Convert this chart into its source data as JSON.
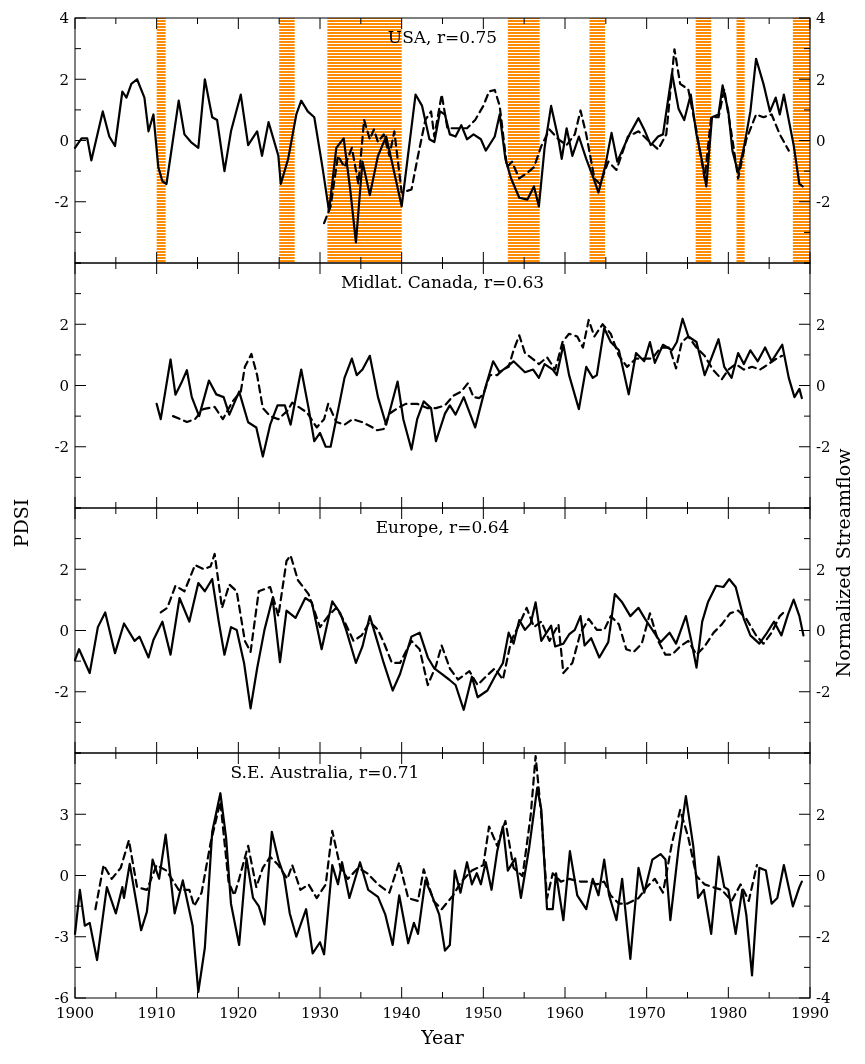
{
  "chart_data": [
    {
      "type": "line",
      "title": "USA, r=0.75",
      "xlim": [
        1900,
        1990
      ],
      "xticks": [
        1900,
        {
          "value": 1905,
          "label": null
        },
        1910,
        {
          "value": 1915,
          "label": null
        },
        1920,
        {
          "value": 1925,
          "label": null
        },
        1930,
        {
          "value": 1935,
          "label": null
        },
        1940,
        {
          "value": 1945,
          "label": null
        },
        1950,
        {
          "value": 1955,
          "label": null
        },
        1960,
        {
          "value": 1965,
          "label": null
        },
        1970,
        {
          "value": 1975,
          "label": null
        },
        1980,
        {
          "value": 1985,
          "label": null
        },
        1990
      ],
      "ylim": [
        -4,
        4
      ],
      "yticks": [
        {
          "value": -4,
          "label": null
        },
        {
          "value": -3,
          "label": null
        },
        -2,
        {
          "value": -1,
          "label": null
        },
        0,
        {
          "value": 1,
          "label": null
        },
        2,
        {
          "value": 3,
          "label": null
        },
        4
      ],
      "y2lim": [
        -4,
        4
      ],
      "y2ticks": [
        {
          "value": -4,
          "label": null
        },
        {
          "value": -3,
          "label": null
        },
        -2,
        {
          "value": -1,
          "label": null
        },
        0,
        {
          "value": 1,
          "label": null
        },
        2,
        {
          "value": 3,
          "label": null
        },
        4
      ],
      "tick_labels": "y",
      "bands": [
        {
          "axis": "x",
          "from": 1910,
          "to": 1911.1,
          "color": "#ff8c00"
        },
        {
          "axis": "x",
          "from": 1925,
          "to": 1926.9,
          "color": "#ff8c00"
        },
        {
          "axis": "x",
          "from": 1930.9,
          "to": 1940,
          "color": "#ff8c00"
        },
        {
          "axis": "x",
          "from": 1953,
          "to": 1956.9,
          "color": "#ff8c00"
        },
        {
          "axis": "x",
          "from": 1963,
          "to": 1964.9,
          "color": "#ff8c00"
        },
        {
          "axis": "x",
          "from": 1976,
          "to": 1977.9,
          "color": "#ff8c00"
        },
        {
          "axis": "x",
          "from": 1981,
          "to": 1982,
          "color": "#ff8c00"
        },
        {
          "axis": "x",
          "from": 1987.9,
          "to": 1990,
          "color": "#ff8c00"
        }
      ],
      "series": [
        {
          "color": "#000000",
          "line_style": "solid",
          "x": [
            1900,
            1900.8,
            1901.5,
            1902,
            1903.4,
            1904.2,
            1904.9,
            1905.8,
            1906.3,
            1906.9,
            1907.6,
            1908.5,
            1909,
            1909.6,
            1910.2,
            1910.7,
            1911.2,
            1912.7,
            1913.4,
            1914.2,
            1915.1,
            1915.9,
            1916.8,
            1917.4,
            1918.3,
            1919.1,
            1920.3,
            1921.2,
            1922.3,
            1922.9,
            1923.7,
            1924.9,
            1925.2,
            1926.1,
            1927.1,
            1927.7,
            1928.5,
            1929.3,
            1930.3,
            1931.1,
            1932,
            1932.9,
            1933.7,
            1934.4,
            1935.2,
            1936.1,
            1937.1,
            1938.1,
            1938.8,
            1940,
            1941.7,
            1942.5,
            1943.4,
            1944,
            1944.7,
            1945.3,
            1945.9,
            1946.6,
            1947.3,
            1948,
            1948.8,
            1949.7,
            1950.3,
            1951.4,
            1952,
            1952.7,
            1953.4,
            1954.4,
            1955.4,
            1956.2,
            1956.8,
            1957.5,
            1958.3,
            1959.2,
            1959.6,
            1960.2,
            1960.9,
            1961.7,
            1962.6,
            1963.5,
            1964.1,
            1964.9,
            1965.7,
            1966.4,
            1967.3,
            1967.9,
            1969,
            1969.8,
            1970.5,
            1971.4,
            1972,
            1973.1,
            1973.9,
            1974.6,
            1975.4,
            1976.1,
            1976.8,
            1977.3,
            1978,
            1978.8,
            1979.3,
            1980,
            1980.5,
            1981.2,
            1981.9,
            1982.7,
            1983.4,
            1984.3,
            1985.1,
            1985.8,
            1986.3,
            1986.8,
            1987.4,
            1988,
            1988.7,
            1989.1
          ],
          "values": [
            -0.24,
            0.07,
            0.07,
            -0.65,
            0.95,
            0.13,
            -0.18,
            1.6,
            1.4,
            1.85,
            2.0,
            1.4,
            0.3,
            0.85,
            -0.87,
            -1.33,
            -1.42,
            1.3,
            0.2,
            -0.05,
            -0.24,
            2.0,
            0.76,
            0.67,
            -1.0,
            0.3,
            1.5,
            -0.15,
            0.3,
            -0.5,
            0.6,
            -0.5,
            -1.42,
            -0.6,
            0.85,
            1.3,
            0.95,
            0.76,
            -0.87,
            -2.3,
            -0.24,
            0.07,
            -1.6,
            -3.33,
            -0.69,
            -1.78,
            -0.5,
            0.13,
            -0.69,
            -2.15,
            1.5,
            1.13,
            0.04,
            -0.05,
            0.95,
            0.85,
            0.2,
            0.13,
            0.5,
            0.04,
            0.2,
            0.04,
            -0.33,
            0.13,
            0.85,
            -0.6,
            -1.24,
            -1.87,
            -1.93,
            -1.5,
            -2.15,
            -0.24,
            1.13,
            0.04,
            -0.6,
            0.4,
            -0.5,
            0.13,
            -0.6,
            -1.24,
            -1.7,
            -0.87,
            0.25,
            -0.69,
            -0.15,
            0.2,
            0.73,
            0.3,
            -0.15,
            0.13,
            0.2,
            2.2,
            1.04,
            0.67,
            1.5,
            0.2,
            -0.69,
            -1.5,
            0.76,
            0.85,
            1.8,
            0.95,
            -0.33,
            -1.05,
            -0.24,
            0.95,
            2.67,
            1.85,
            0.95,
            1.4,
            0.85,
            1.5,
            0.67,
            -0.15,
            -1.42,
            -1.5
          ]
        },
        {
          "color": "#000000",
          "line_style": "dashed",
          "axis": "y2",
          "x": [
            1930.5,
            1931.3,
            1932.2,
            1933,
            1933.9,
            1934.7,
            1935.4,
            1936.1,
            1936.6,
            1937.1,
            1937.8,
            1938.5,
            1939.1,
            1940,
            1941.2,
            1942,
            1942.9,
            1943.6,
            1944,
            1944.9,
            1945.6,
            1946.6,
            1948,
            1949,
            1950,
            1950.7,
            1951.4,
            1952,
            1952.9,
            1953.5,
            1954.4,
            1955.4,
            1956.2,
            1957.1,
            1958.1,
            1959.2,
            1960.2,
            1961.2,
            1961.9,
            1962.6,
            1963.6,
            1964.3,
            1965.3,
            1966.3,
            1967.7,
            1969,
            1970.4,
            1971.4,
            1972.4,
            1973.4,
            1974.1,
            1975.1,
            1976.1,
            1977.1,
            1977.9,
            1978.8,
            1979.5,
            1980.5,
            1981.2,
            1982.2,
            1983.4,
            1984.3,
            1985.3,
            1986.3,
            1987.4
          ],
          "values": [
            -2.7,
            -2.15,
            -0.5,
            -0.87,
            -0.24,
            -1.42,
            0.67,
            0.04,
            0.36,
            -0.05,
            0.2,
            -0.5,
            0.3,
            -1.7,
            -1.6,
            -0.5,
            0.67,
            0.95,
            0.13,
            1.5,
            0.4,
            0.4,
            0.4,
            0.67,
            1.13,
            1.6,
            1.65,
            1.13,
            -0.87,
            -0.69,
            -1.24,
            -1.05,
            -0.87,
            -0.18,
            0.36,
            0.04,
            -0.15,
            0.2,
            0.98,
            0.2,
            -1.24,
            -1.42,
            -0.69,
            -0.96,
            0.13,
            0.3,
            -0.05,
            -0.29,
            0.2,
            2.98,
            1.85,
            1.67,
            0.3,
            -1.24,
            0.76,
            0.76,
            1.67,
            0.04,
            -1.24,
            0.04,
            0.85,
            0.76,
            0.85,
            0.2,
            -0.33
          ]
        }
      ]
    },
    {
      "type": "line",
      "title": "Midlat. Canada, r=0.63",
      "xlim": [
        1900,
        1990
      ],
      "xticks": [
        1900,
        {
          "value": 1905,
          "label": null
        },
        1910,
        {
          "value": 1915,
          "label": null
        },
        1920,
        {
          "value": 1925,
          "label": null
        },
        1930,
        {
          "value": 1935,
          "label": null
        },
        1940,
        {
          "value": 1945,
          "label": null
        },
        1950,
        {
          "value": 1955,
          "label": null
        },
        1960,
        {
          "value": 1965,
          "label": null
        },
        1970,
        {
          "value": 1975,
          "label": null
        },
        1980,
        {
          "value": 1985,
          "label": null
        },
        1990
      ],
      "ylim": [
        -4,
        4
      ],
      "yticks": [
        {
          "value": -4,
          "label": null
        },
        {
          "value": -3,
          "label": null
        },
        -2,
        {
          "value": -1,
          "label": null
        },
        0,
        {
          "value": 1,
          "label": null
        },
        2,
        {
          "value": 3,
          "label": null
        },
        {
          "value": 4,
          "label": null
        }
      ],
      "y2lim": [
        -4,
        4
      ],
      "y2ticks": [
        {
          "value": -4,
          "label": null
        },
        {
          "value": -3,
          "label": null
        },
        -2,
        {
          "value": -1,
          "label": null
        },
        0,
        {
          "value": 1,
          "label": null
        },
        2,
        {
          "value": 3,
          "label": null
        },
        {
          "value": 4,
          "label": null
        }
      ],
      "tick_labels": "y",
      "series": [
        {
          "color": "#000000",
          "line_style": "solid",
          "x": [
            1910,
            1910.5,
            1911.7,
            1912.3,
            1913,
            1913.7,
            1914.3,
            1915.2,
            1916.4,
            1917.3,
            1918.2,
            1918.9,
            1920.1,
            1921.2,
            1922.2,
            1923,
            1923.9,
            1924.8,
            1925.7,
            1926.4,
            1927.7,
            1928.6,
            1929.3,
            1930,
            1930.7,
            1931.3,
            1932.4,
            1933,
            1933.9,
            1934.5,
            1935.2,
            1936.1,
            1937.1,
            1938.1,
            1939.5,
            1940.2,
            1941.2,
            1941.9,
            1942.7,
            1943.6,
            1944.2,
            1945.3,
            1945.9,
            1946.6,
            1947.6,
            1949,
            1950.3,
            1951.2,
            1952,
            1952.9,
            1953.7,
            1954.4,
            1955.1,
            1956.1,
            1956.8,
            1957.5,
            1958.5,
            1959,
            1959.8,
            1960.5,
            1961.7,
            1962.6,
            1963.4,
            1963.9,
            1964.8,
            1965.6,
            1966.6,
            1967.8,
            1968.7,
            1969.7,
            1970.4,
            1971,
            1972,
            1973.1,
            1973.7,
            1974.4,
            1975.1,
            1976.1,
            1977.1,
            1977.9,
            1978.8,
            1979.5,
            1980.4,
            1981.2,
            1981.9,
            1982.7,
            1983.6,
            1984.5,
            1985.3,
            1986.6,
            1987.4,
            1988.1,
            1988.7,
            1989
          ],
          "values": [
            -0.6,
            -1.1,
            0.85,
            -0.3,
            0.07,
            0.5,
            -0.38,
            -1.0,
            0.16,
            -0.29,
            -0.38,
            -0.95,
            -0.2,
            -1.2,
            -1.37,
            -2.32,
            -1.28,
            -0.65,
            -0.65,
            -1.28,
            0.52,
            -0.74,
            -1.82,
            -1.55,
            -2.0,
            -2.0,
            -0.56,
            0.25,
            0.88,
            0.34,
            0.52,
            0.97,
            -0.38,
            -1.28,
            0.13,
            -1.1,
            -2.09,
            -1.1,
            -0.52,
            -0.74,
            -1.82,
            -0.92,
            -0.65,
            -0.95,
            -0.38,
            -1.37,
            -0.02,
            0.79,
            0.43,
            0.61,
            0.79,
            0.61,
            0.43,
            0.52,
            0.25,
            0.7,
            0.52,
            0.34,
            1.33,
            0.34,
            -0.77,
            0.61,
            0.25,
            0.34,
            1.87,
            1.42,
            1.15,
            -0.29,
            1.06,
            0.79,
            1.42,
            0.74,
            1.33,
            1.15,
            1.42,
            2.18,
            1.6,
            1.42,
            0.34,
            0.88,
            1.51,
            0.61,
            0.25,
            1.06,
            0.7,
            1.15,
            0.79,
            1.24,
            0.79,
            1.33,
            0.25,
            -0.38,
            -0.11,
            -0.41
          ]
        },
        {
          "color": "#000000",
          "line_style": "dashed",
          "axis": "y2",
          "x": [
            1912,
            1913.7,
            1914.7,
            1915.7,
            1917.1,
            1918.1,
            1919.3,
            1920.3,
            1920.8,
            1921.6,
            1922.3,
            1923,
            1923.9,
            1924.9,
            1926,
            1926.6,
            1927.6,
            1928.4,
            1929.6,
            1930.5,
            1931,
            1932,
            1933,
            1934,
            1935.1,
            1936.1,
            1937,
            1937.8,
            1938.5,
            1939.5,
            1940.5,
            1941.9,
            1943.2,
            1944.2,
            1945.3,
            1946.3,
            1947.3,
            1948.1,
            1948.8,
            1949.5,
            1950,
            1950.8,
            1951.7,
            1952.4,
            1953.1,
            1953.7,
            1954.4,
            1955.1,
            1956,
            1956.8,
            1957.8,
            1958.8,
            1959.7,
            1960.5,
            1961.5,
            1962.2,
            1962.9,
            1963.6,
            1964.6,
            1965.6,
            1966.6,
            1967.6,
            1968.7,
            1969.7,
            1970.7,
            1971.7,
            1972.8,
            1973.6,
            1974.3,
            1975.1,
            1976.1,
            1977.1,
            1978.1,
            1979.2,
            1980,
            1980.9,
            1981.9,
            1982.9,
            1983.9,
            1984.9,
            1985.9,
            1986.6
          ],
          "values": [
            -1.0,
            -1.19,
            -1.1,
            -0.77,
            -0.7,
            -1.1,
            -0.52,
            -0.2,
            0.61,
            1.03,
            0.34,
            -0.74,
            -1.0,
            -1.1,
            -0.83,
            -0.56,
            -0.74,
            -0.88,
            -1.37,
            -1.1,
            -0.6,
            -1.19,
            -1.28,
            -1.1,
            -1.19,
            -1.32,
            -1.46,
            -1.42,
            -0.92,
            -0.74,
            -0.6,
            -0.6,
            -0.74,
            -0.74,
            -0.65,
            -0.34,
            -0.2,
            0.07,
            -0.38,
            -0.41,
            -0.29,
            0.34,
            0.34,
            0.52,
            0.61,
            1.15,
            1.64,
            1.06,
            0.88,
            0.7,
            0.92,
            0.52,
            1.42,
            1.69,
            1.6,
            1.24,
            2.14,
            1.6,
            2.0,
            1.69,
            0.97,
            0.61,
            0.88,
            0.88,
            0.88,
            1.24,
            1.24,
            0.56,
            1.42,
            1.6,
            1.24,
            0.97,
            0.52,
            0.2,
            0.52,
            0.7,
            0.52,
            0.61,
            0.52,
            0.7,
            0.88,
            0.97
          ]
        }
      ]
    },
    {
      "type": "line",
      "title": "Europe, r=0.64",
      "ylabel": "PDSI",
      "y2label": "Normalized Streamflow",
      "xlim": [
        1900,
        1990
      ],
      "xticks": [
        1900,
        {
          "value": 1905,
          "label": null
        },
        1910,
        {
          "value": 1915,
          "label": null
        },
        1920,
        {
          "value": 1925,
          "label": null
        },
        1930,
        {
          "value": 1935,
          "label": null
        },
        1940,
        {
          "value": 1945,
          "label": null
        },
        1950,
        {
          "value": 1955,
          "label": null
        },
        1960,
        {
          "value": 1965,
          "label": null
        },
        1970,
        {
          "value": 1975,
          "label": null
        },
        1980,
        {
          "value": 1985,
          "label": null
        },
        1990
      ],
      "ylim": [
        -4,
        4
      ],
      "yticks": [
        {
          "value": -4,
          "label": null
        },
        {
          "value": -3,
          "label": null
        },
        -2,
        {
          "value": -1,
          "label": null
        },
        0,
        {
          "value": 1,
          "label": null
        },
        2,
        {
          "value": 3,
          "label": null
        },
        {
          "value": 4,
          "label": null
        }
      ],
      "y2lim": [
        -4,
        4
      ],
      "y2ticks": [
        {
          "value": -4,
          "label": null
        },
        {
          "value": -3,
          "label": null
        },
        -2,
        {
          "value": -1,
          "label": null
        },
        0,
        {
          "value": 1,
          "label": null
        },
        2,
        {
          "value": 3,
          "label": null
        },
        {
          "value": 4,
          "label": null
        }
      ],
      "tick_labels": "y",
      "series": [
        {
          "color": "#000000",
          "line_style": "solid",
          "x": [
            1900,
            1900.5,
            1901.8,
            1902.8,
            1903.7,
            1904.9,
            1906,
            1907.3,
            1907.9,
            1909,
            1909.6,
            1910.7,
            1911.7,
            1912.8,
            1914,
            1915.1,
            1915.9,
            1916.8,
            1917.6,
            1918.3,
            1919.1,
            1919.8,
            1920.7,
            1921.5,
            1922.3,
            1923.2,
            1924.2,
            1925.1,
            1925.9,
            1927,
            1928.2,
            1929,
            1930.2,
            1931.5,
            1932.5,
            1933.2,
            1934.4,
            1935.2,
            1936.1,
            1937.1,
            1937.8,
            1938.9,
            1939.8,
            1941.2,
            1942.2,
            1943.2,
            1944,
            1944.9,
            1945.8,
            1946.6,
            1947.6,
            1948.6,
            1949.3,
            1950.5,
            1951.4,
            1952.4,
            1953.1,
            1953.7,
            1954.4,
            1955.1,
            1955.8,
            1956.4,
            1957.1,
            1958.3,
            1958.8,
            1959.8,
            1960.5,
            1961.2,
            1961.9,
            1962.4,
            1963.2,
            1964.2,
            1965.3,
            1966.1,
            1967,
            1968,
            1969,
            1969.8,
            1970.7,
            1971.7,
            1972.8,
            1973.6,
            1974.8,
            1975.4,
            1976.1,
            1976.8,
            1977.5,
            1978.5,
            1979.4,
            1980.1,
            1980.9,
            1981.9,
            1982.7,
            1983.8,
            1984.6,
            1985.6,
            1986.5,
            1987.3,
            1988,
            1988.7,
            1989.2
          ],
          "values": [
            -0.97,
            -0.61,
            -1.39,
            0.11,
            0.59,
            -0.74,
            0.23,
            -0.34,
            -0.2,
            -0.88,
            -0.31,
            0.29,
            -0.79,
            1.06,
            0.29,
            1.55,
            1.28,
            1.68,
            0.29,
            -0.79,
            0.11,
            0.02,
            -1.06,
            -2.54,
            -1.24,
            0.02,
            1.06,
            -1.03,
            0.65,
            0.41,
            1.06,
            0.92,
            -0.61,
            0.95,
            0.56,
            0.02,
            -1.06,
            -0.52,
            0.47,
            -0.43,
            -1.06,
            -1.96,
            -1.42,
            -0.2,
            -0.07,
            -0.88,
            -1.24,
            -1.42,
            -1.6,
            -1.78,
            -2.59,
            -1.51,
            -2.18,
            -1.96,
            -1.51,
            -1.06,
            -0.07,
            -0.43,
            0.34,
            0.02,
            0.23,
            0.92,
            -0.34,
            0.16,
            -0.52,
            -0.43,
            -0.13,
            0.02,
            0.47,
            -0.49,
            -0.25,
            -0.88,
            -0.38,
            1.19,
            0.92,
            0.47,
            0.74,
            0.38,
            0.02,
            -0.38,
            -0.07,
            -0.43,
            0.47,
            -0.25,
            -1.21,
            0.29,
            0.92,
            1.46,
            1.42,
            1.68,
            1.42,
            0.38,
            -0.16,
            -0.43,
            -0.13,
            0.29,
            -0.16,
            0.52,
            1.01,
            0.47,
            -0.16
          ]
        },
        {
          "color": "#000000",
          "line_style": "dashed",
          "axis": "y2",
          "x": [
            1910.5,
            1911.3,
            1912.3,
            1913.4,
            1914.7,
            1915.8,
            1916.6,
            1917.1,
            1918,
            1918.9,
            1919.8,
            1920.8,
            1921.5,
            1922.5,
            1923.9,
            1924.9,
            1925.9,
            1926.4,
            1927.3,
            1928.6,
            1930,
            1931,
            1932,
            1933,
            1934.1,
            1935.1,
            1936.1,
            1937.1,
            1937.8,
            1938.8,
            1939.8,
            1941.2,
            1942.2,
            1943.2,
            1944.2,
            1944.9,
            1945.9,
            1946.9,
            1948.3,
            1949.3,
            1950.3,
            1951.4,
            1952.4,
            1953.4,
            1954.4,
            1955.3,
            1956.2,
            1957.1,
            1958.1,
            1959.2,
            1959.8,
            1960.9,
            1961.9,
            1962.9,
            1963.9,
            1964.8,
            1965.6,
            1966.6,
            1967.5,
            1968.4,
            1969.4,
            1970.4,
            1971.4,
            1972.3,
            1973.1,
            1974.1,
            1975.1,
            1976.1,
            1977.1,
            1978.2,
            1979.2,
            1980.2,
            1981.2,
            1982.2,
            1983.4,
            1984.3,
            1985.3,
            1986.3,
            1987
          ],
          "values": [
            0.59,
            0.74,
            1.46,
            1.28,
            2.14,
            2.0,
            2.09,
            2.5,
            0.74,
            1.5,
            1.28,
            -0.34,
            -0.7,
            1.28,
            1.42,
            0.47,
            2.27,
            2.45,
            1.64,
            1.19,
            0.11,
            0.47,
            0.74,
            0.29,
            -0.34,
            -0.16,
            0.29,
            0.02,
            -0.38,
            -1.06,
            -1.06,
            -0.34,
            -0.61,
            -1.78,
            -1.15,
            -0.49,
            -1.24,
            -1.6,
            -1.33,
            -1.78,
            -1.51,
            -1.24,
            -1.6,
            -0.34,
            0.2,
            0.74,
            0.11,
            0.29,
            -0.34,
            0.2,
            -1.39,
            -1.06,
            -0.07,
            0.38,
            0.02,
            0.02,
            0.47,
            0.2,
            -0.61,
            -0.7,
            -0.43,
            0.56,
            -0.34,
            -0.79,
            -0.79,
            -0.52,
            -0.34,
            -0.79,
            -0.52,
            -0.07,
            0.2,
            0.56,
            0.65,
            0.38,
            -0.16,
            -0.43,
            -0.07,
            0.47,
            0.65
          ]
        }
      ]
    },
    {
      "type": "line",
      "title": "S.E. Australia,   r=0.71",
      "xlabel": "Year",
      "xlim": [
        1900,
        1990
      ],
      "xticks": [
        1900,
        {
          "value": 1905,
          "label": null
        },
        1910,
        {
          "value": 1915,
          "label": null
        },
        1920,
        {
          "value": 1925,
          "label": null
        },
        1930,
        {
          "value": 1935,
          "label": null
        },
        1940,
        {
          "value": 1945,
          "label": null
        },
        1950,
        {
          "value": 1955,
          "label": null
        },
        1960,
        {
          "value": 1965,
          "label": null
        },
        1970,
        {
          "value": 1975,
          "label": null
        },
        1980,
        {
          "value": 1985,
          "label": null
        },
        1990
      ],
      "ylim": [
        -6,
        6
      ],
      "yticks": [
        -6,
        {
          "value": -4.5,
          "label": null
        },
        -3,
        {
          "value": -1.5,
          "label": null
        },
        0,
        {
          "value": 1.5,
          "label": null
        },
        3,
        {
          "value": 4.5,
          "label": null
        },
        {
          "value": 6,
          "label": null
        }
      ],
      "y2lim": [
        -4,
        4
      ],
      "y2ticks": [
        -4,
        {
          "value": -3,
          "label": null
        },
        -2,
        {
          "value": -1,
          "label": null
        },
        0,
        {
          "value": 1,
          "label": null
        },
        2,
        {
          "value": 3,
          "label": null
        },
        {
          "value": 4,
          "label": null
        }
      ],
      "series": [
        {
          "color": "#000000",
          "line_style": "solid",
          "x": [
            1900,
            1900.6,
            1901.2,
            1901.8,
            1902.7,
            1903.9,
            1905,
            1905.8,
            1906,
            1906.7,
            1908.1,
            1908.8,
            1909.5,
            1910.3,
            1911.1,
            1912.2,
            1913.2,
            1914.4,
            1915.1,
            1915.9,
            1916.8,
            1917.8,
            1918.5,
            1919.1,
            1920.1,
            1921,
            1921.8,
            1922.5,
            1923.2,
            1924.1,
            1924.9,
            1925.6,
            1926.3,
            1927.1,
            1928.3,
            1929.1,
            1930,
            1930.5,
            1931.5,
            1932.2,
            1932.7,
            1933.6,
            1934.9,
            1935.9,
            1937.1,
            1938,
            1938.9,
            1939.7,
            1940.8,
            1941.5,
            1942,
            1942.9,
            1943.7,
            1944.6,
            1945.3,
            1945.9,
            1946.5,
            1947.2,
            1948,
            1948.6,
            1949.2,
            1949.7,
            1950.3,
            1951,
            1951.7,
            1952.4,
            1953,
            1953.9,
            1954.6,
            1955.6,
            1956.6,
            1957.1,
            1957.8,
            1958.5,
            1958.9,
            1959.8,
            1960.6,
            1961.5,
            1962.6,
            1963.4,
            1964.1,
            1964.8,
            1965.4,
            1966.3,
            1967,
            1968,
            1969,
            1969.7,
            1970.7,
            1971.7,
            1972.3,
            1972.9,
            1973.9,
            1974.8,
            1975.7,
            1976.3,
            1977,
            1977.9,
            1978.8,
            1979.5,
            1980,
            1980.9,
            1981.7,
            1982.2,
            1982.9,
            1983.8,
            1984.6,
            1985.3,
            1986,
            1986.8,
            1987.9,
            1988.7,
            1989
          ],
          "values": [
            -2.86,
            -0.7,
            -2.46,
            -2.32,
            -4.14,
            -0.57,
            -1.86,
            -0.57,
            -1.1,
            0.57,
            -2.68,
            -1.78,
            0.78,
            -0.16,
            2.0,
            -1.86,
            -0.24,
            -2.46,
            -5.7,
            -3.54,
            2.14,
            4.03,
            1.86,
            -1.38,
            -3.4,
            0.84,
            -1.1,
            -1.5,
            -2.4,
            2.14,
            0.78,
            -0.03,
            -1.86,
            -3.0,
            -1.65,
            -3.81,
            -3.27,
            -3.86,
            0.51,
            -0.43,
            0.65,
            -1.1,
            0.65,
            -0.7,
            -1.05,
            -1.92,
            -3.4,
            -0.97,
            -3.32,
            -2.32,
            -2.86,
            -0.24,
            -0.97,
            -1.92,
            -3.68,
            -3.4,
            0.24,
            -0.84,
            0.65,
            -0.43,
            0.11,
            -0.43,
            0.65,
            -0.7,
            1.19,
            2.41,
            0.24,
            0.84,
            -1.1,
            1.32,
            4.3,
            3.22,
            -1.65,
            -1.65,
            0.11,
            -2.19,
            1.19,
            -0.97,
            -1.65,
            -0.16,
            -0.97,
            0.78,
            -0.97,
            -2.19,
            -0.16,
            -4.08,
            0.38,
            -0.84,
            0.78,
            1.05,
            0.78,
            -2.19,
            1.32,
            3.89,
            1.46,
            -1.1,
            -0.7,
            -2.86,
            0.92,
            -0.57,
            -0.7,
            -2.86,
            -0.7,
            -1.92,
            -4.89,
            0.38,
            0.24,
            -1.38,
            -1.1,
            0.51,
            -1.51,
            -0.57,
            -0.3
          ]
        },
        {
          "color": "#000000",
          "line_style": "dashed",
          "axis": "y2",
          "x": [
            1902.5,
            1903.5,
            1904.5,
            1905.6,
            1906.6,
            1907.6,
            1908.8,
            1910,
            1911.2,
            1912.7,
            1914,
            1914.6,
            1915.5,
            1916.6,
            1917.8,
            1918.8,
            1919.5,
            1920.1,
            1921.2,
            1922.2,
            1923,
            1923.9,
            1924.9,
            1926,
            1926.6,
            1927.6,
            1928.6,
            1929.6,
            1930.7,
            1931.5,
            1932.5,
            1933.4,
            1934.7,
            1935.8,
            1937.1,
            1938.5,
            1939.7,
            1940.8,
            1942,
            1942.7,
            1943.9,
            1944.9,
            1946.3,
            1947.3,
            1948.6,
            1950,
            1950.7,
            1951.7,
            1952.7,
            1953.7,
            1954.8,
            1955.8,
            1956.4,
            1957.1,
            1957.8,
            1958.5,
            1959.5,
            1960.5,
            1961.9,
            1962.9,
            1963.9,
            1964.8,
            1965.6,
            1966.6,
            1967.6,
            1969,
            1970,
            1971,
            1972,
            1973.1,
            1974.1,
            1975.1,
            1976.1,
            1977.1,
            1978.1,
            1979.2,
            1980.4,
            1981.5,
            1982.5,
            1983.5
          ],
          "values": [
            -1.1,
            0.34,
            -0.11,
            0.25,
            1.15,
            -0.38,
            -0.47,
            0.34,
            0.16,
            -0.47,
            -0.47,
            -1.0,
            -0.56,
            1.06,
            2.41,
            -0.2,
            -0.65,
            -0.11,
            0.97,
            -0.38,
            0.25,
            0.61,
            0.34,
            -0.11,
            0.34,
            -0.47,
            -0.29,
            -0.74,
            -0.29,
            1.46,
            0.25,
            -0.11,
            0.25,
            0.07,
            -0.29,
            -0.56,
            0.43,
            -0.74,
            -0.83,
            0.2,
            -0.83,
            -1.1,
            -0.65,
            -0.2,
            0.16,
            0.34,
            1.6,
            0.97,
            1.78,
            0.25,
            -0.02,
            1.96,
            3.9,
            1.96,
            -0.74,
            0.07,
            -0.2,
            -0.11,
            -0.2,
            -0.2,
            -0.29,
            -0.2,
            -0.65,
            -0.92,
            -0.92,
            -0.74,
            -0.38,
            -0.11,
            -0.56,
            1.06,
            2.14,
            1.24,
            -0.02,
            -0.29,
            -0.38,
            -0.47,
            -0.83,
            -0.29,
            -0.83,
            0.34
          ]
        }
      ]
    }
  ]
}
